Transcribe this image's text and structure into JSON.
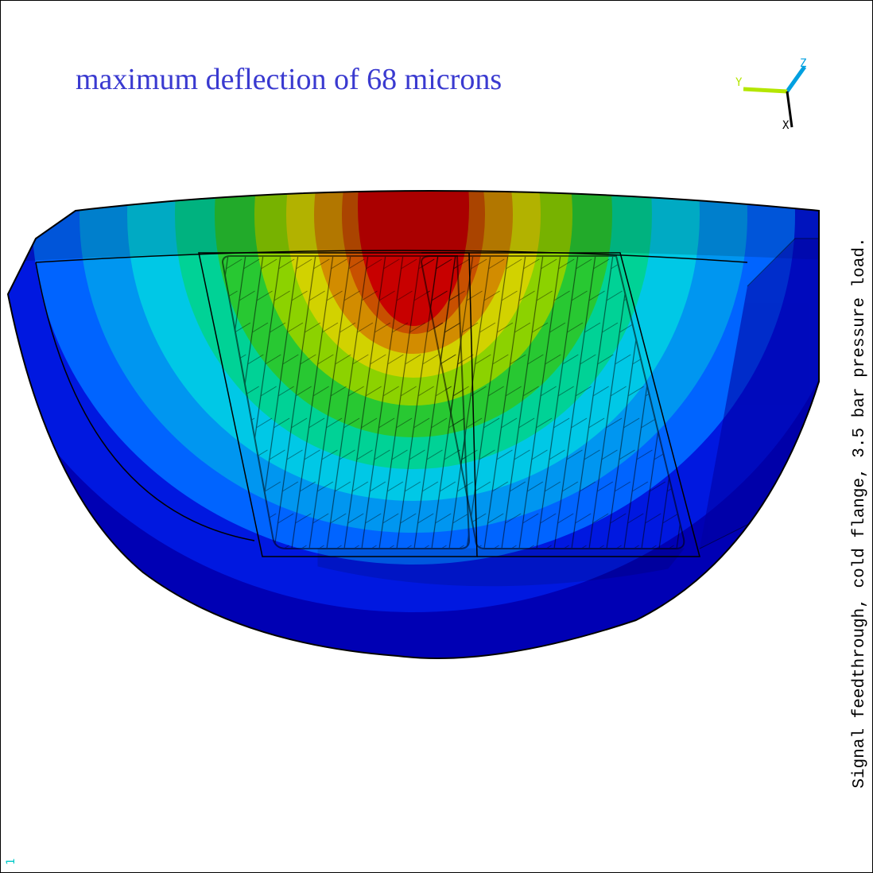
{
  "title": "maximum deflection of 68 microns",
  "side_label": "Signal feedthrough, cold flange, 3.5 bar pressure load.",
  "triad": {
    "z": "Z",
    "y": "Y",
    "x": "X"
  },
  "window_number": "1"
}
